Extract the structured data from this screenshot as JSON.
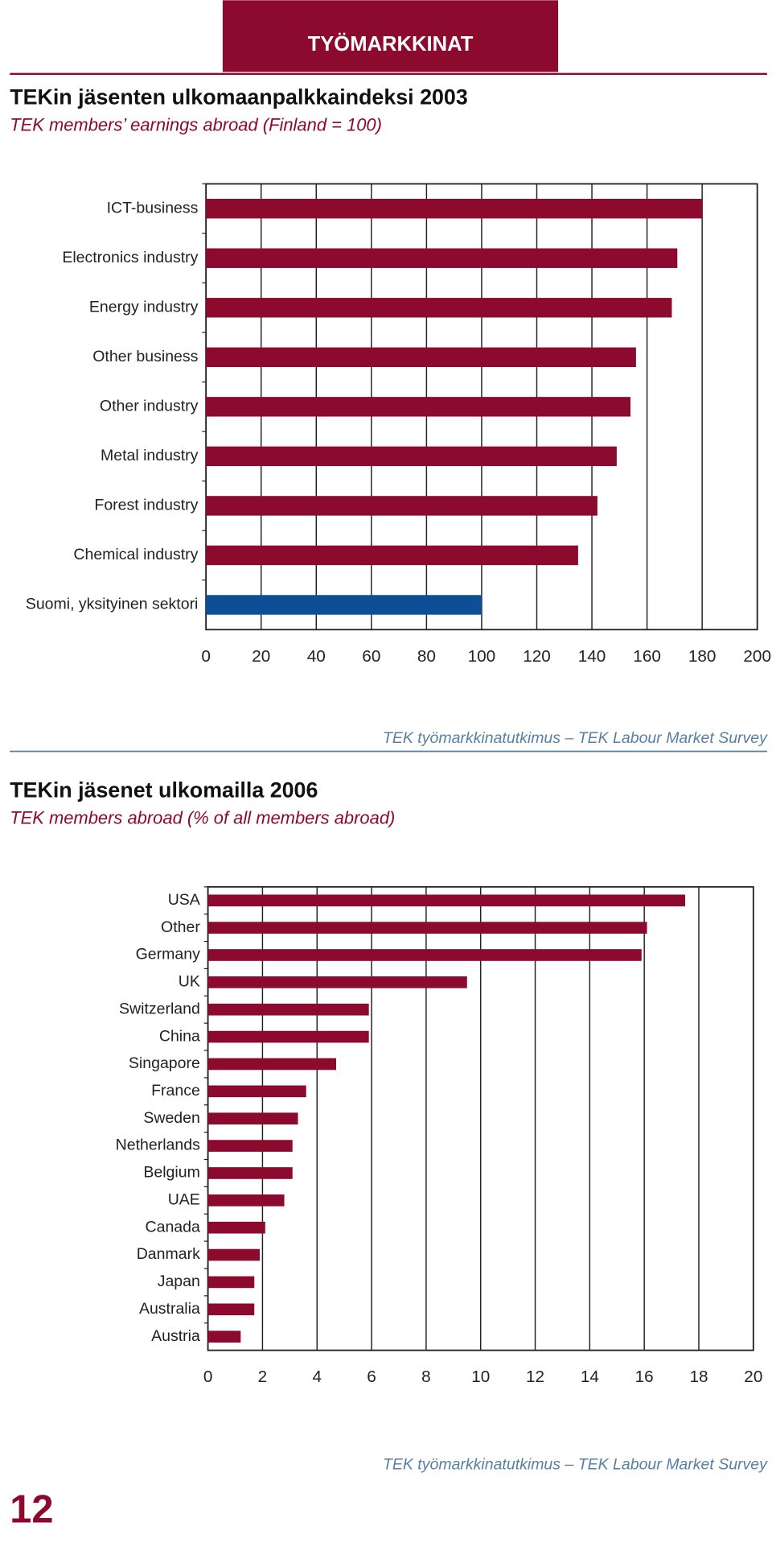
{
  "header": "TYÖMARKKINAT",
  "page_number": "12",
  "chart_data": [
    {
      "type": "bar",
      "orientation": "horizontal",
      "title": "TEKin jäsenten ulkomaanpalkkaindeksi 2003",
      "subtitle": "TEK members’ earnings abroad (Finland = 100)",
      "source": "TEK työmarkkinatutkimus – TEK Labour Market Survey",
      "categories": [
        "ICT-business",
        "Electronics industry",
        "Energy industry",
        "Other business",
        "Other industry",
        "Metal industry",
        "Forest industry",
        "Chemical industry",
        "Suomi, yksityinen sektori"
      ],
      "values": [
        180,
        171,
        169,
        156,
        154,
        149,
        142,
        135,
        100
      ],
      "colors": [
        "#8b0a2e",
        "#8b0a2e",
        "#8b0a2e",
        "#8b0a2e",
        "#8b0a2e",
        "#8b0a2e",
        "#8b0a2e",
        "#8b0a2e",
        "#0d4f96"
      ],
      "xlim": [
        0,
        200
      ],
      "xticks": [
        0,
        20,
        40,
        60,
        80,
        100,
        120,
        140,
        160,
        180,
        200
      ],
      "grid": true
    },
    {
      "type": "bar",
      "orientation": "horizontal",
      "title": "TEKin jäsenet ulkomailla 2006",
      "subtitle": "TEK members abroad (% of all members abroad)",
      "source": "TEK työmarkkinatutkimus – TEK Labour Market Survey",
      "categories": [
        "USA",
        "Other",
        "Germany",
        "UK",
        "Switzerland",
        "China",
        "Singapore",
        "France",
        "Sweden",
        "Netherlands",
        "Belgium",
        "UAE",
        "Canada",
        "Danmark",
        "Japan",
        "Australia",
        "Austria"
      ],
      "values": [
        17.5,
        16.1,
        15.9,
        9.5,
        5.9,
        5.9,
        4.7,
        3.6,
        3.3,
        3.1,
        3.1,
        2.8,
        2.1,
        1.9,
        1.7,
        1.7,
        1.2
      ],
      "color": "#8b0a2e",
      "xlim": [
        0,
        20
      ],
      "xticks": [
        0,
        2,
        4,
        6,
        8,
        10,
        12,
        14,
        16,
        18,
        20
      ],
      "grid": true
    }
  ]
}
